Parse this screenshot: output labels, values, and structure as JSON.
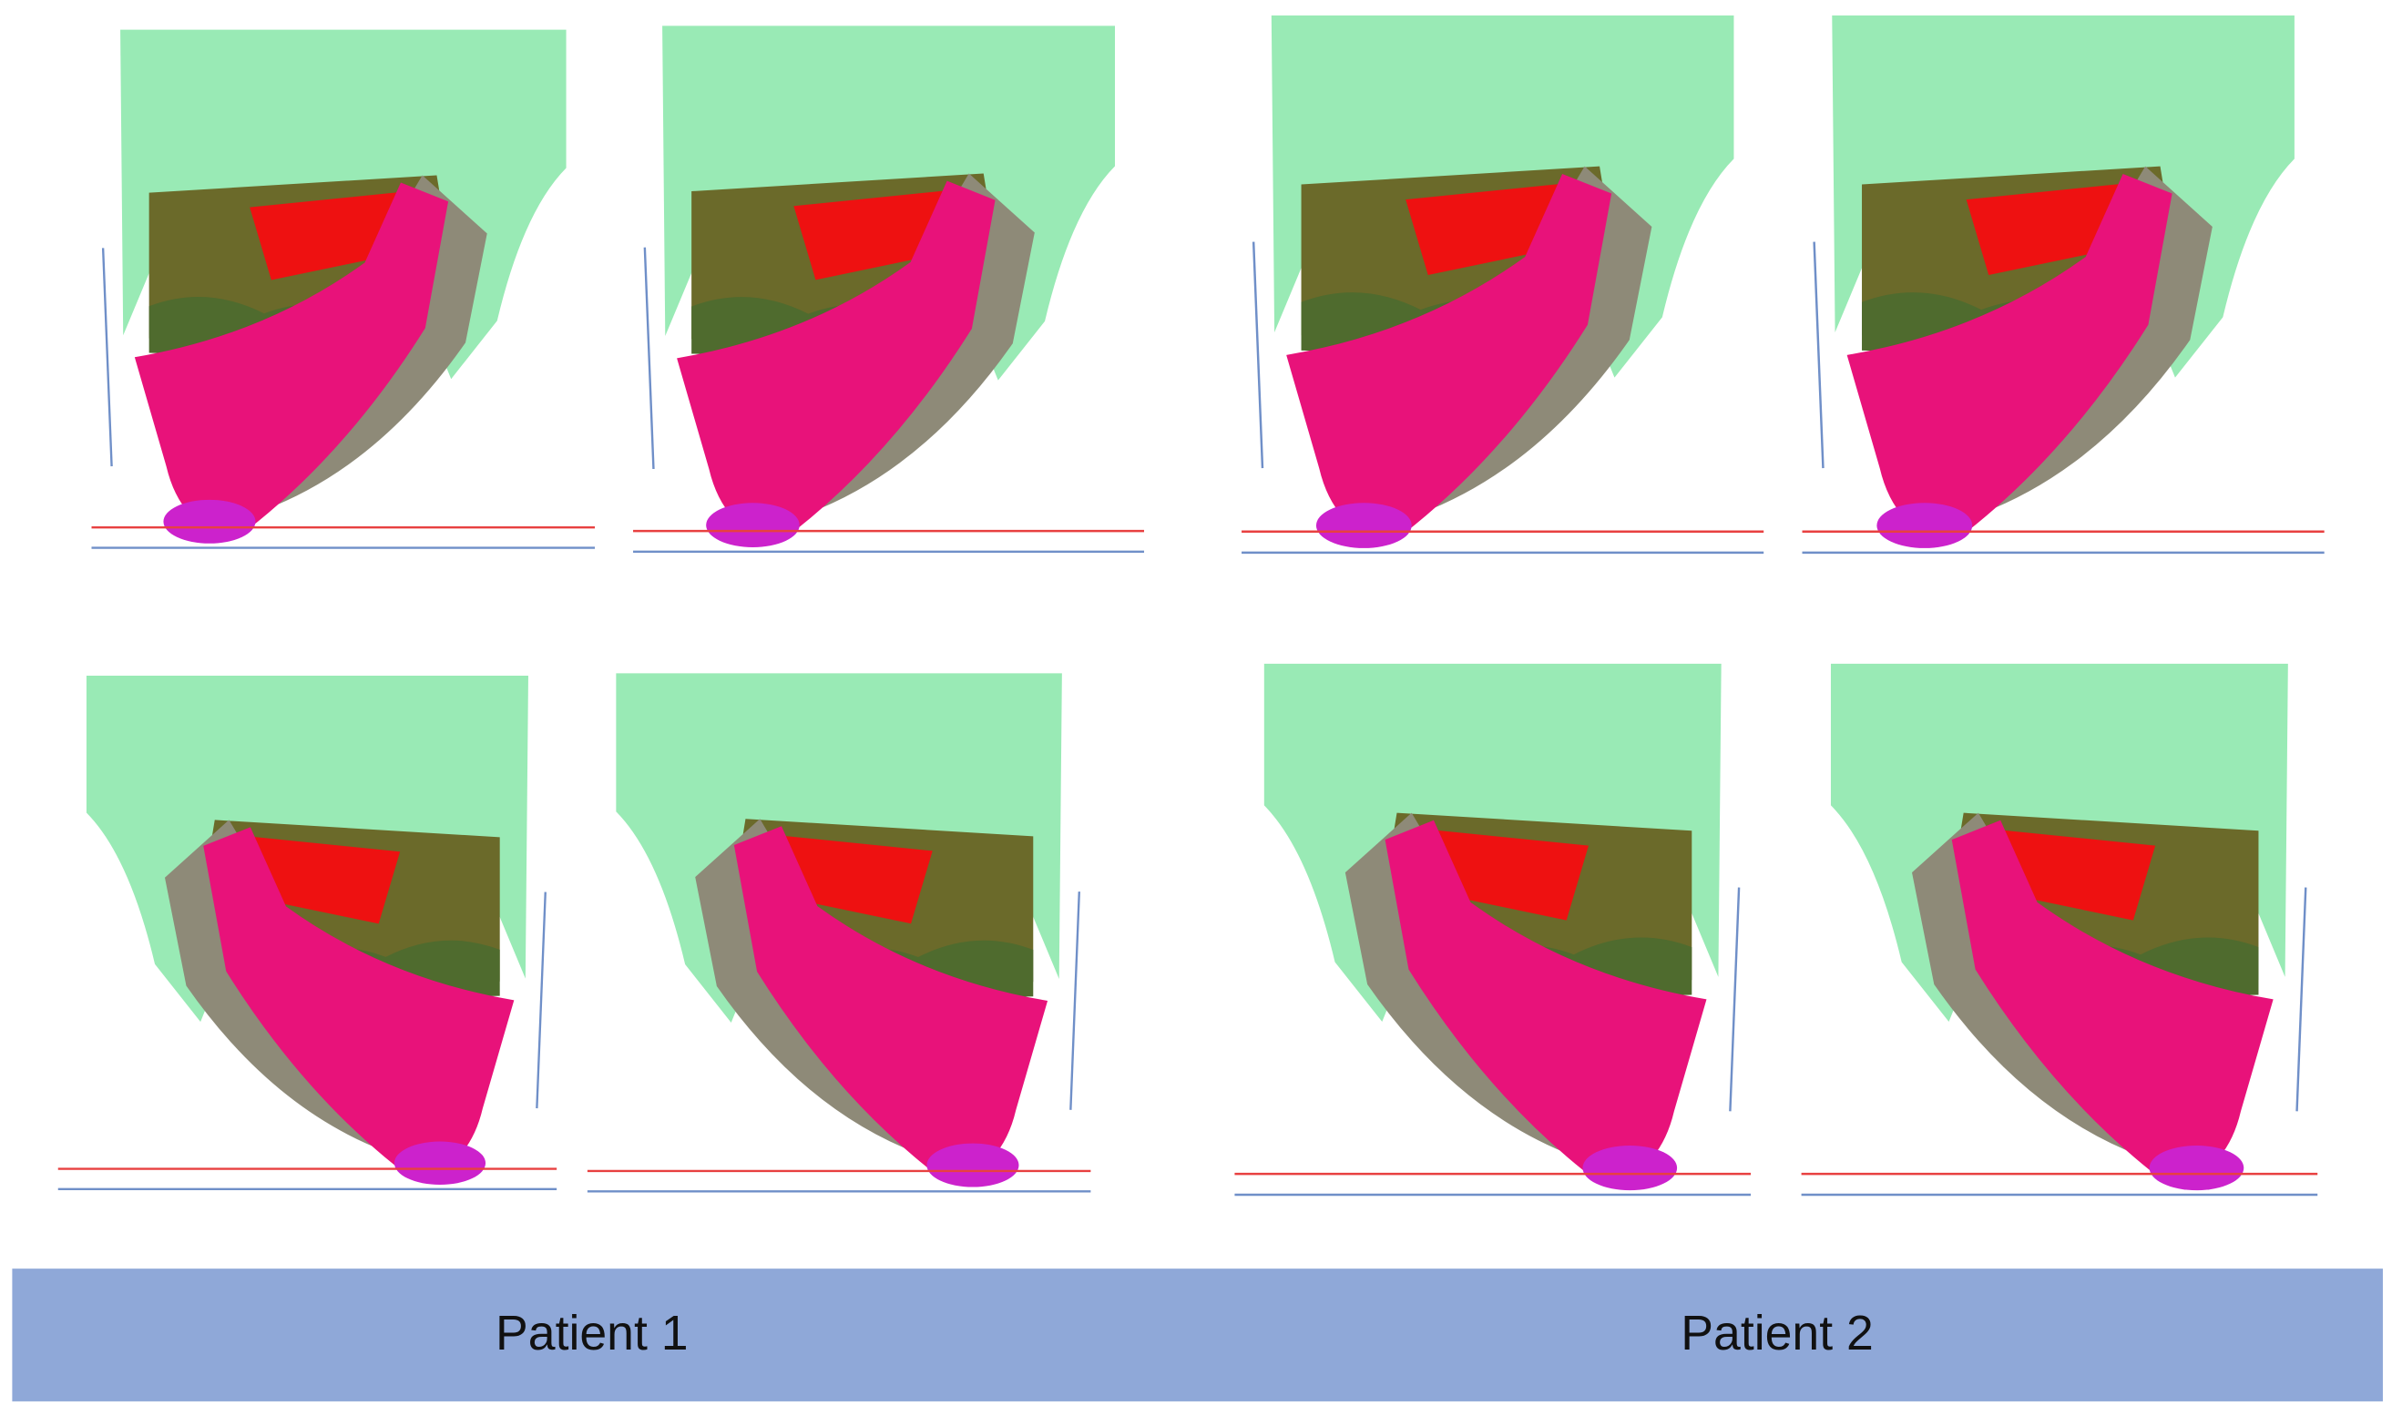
{
  "footer": {
    "labels": [
      "Patient 1",
      "Patient 2"
    ]
  }
}
